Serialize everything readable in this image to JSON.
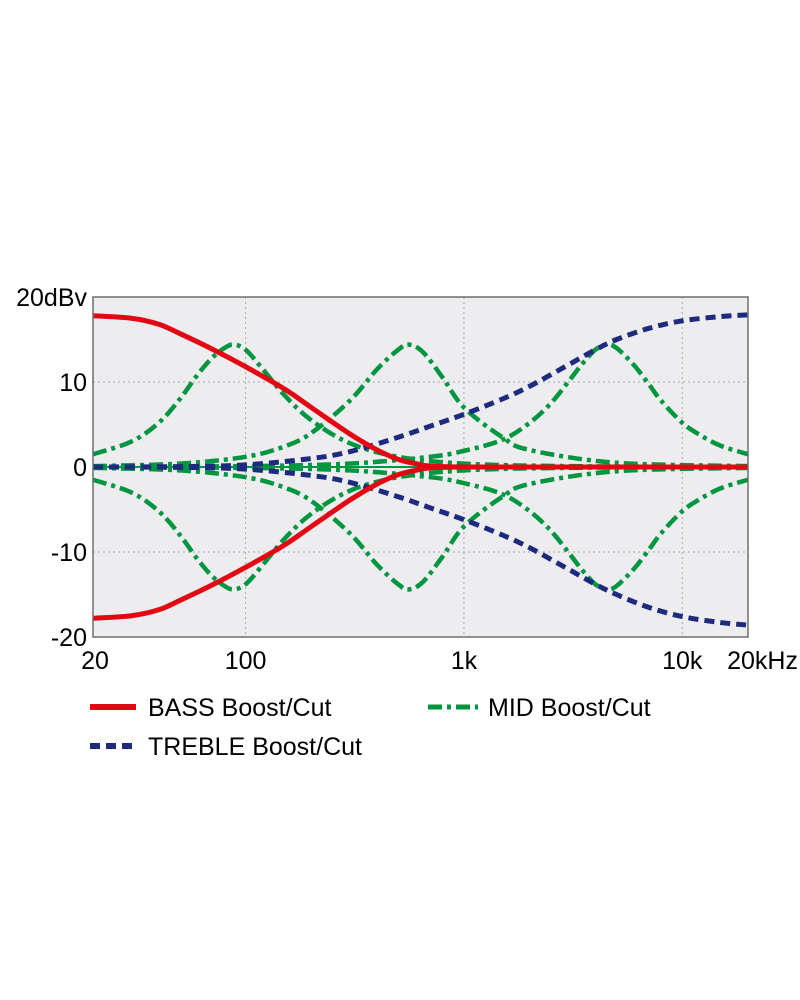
{
  "chart_data": {
    "type": "line",
    "title": "",
    "xlabel": "",
    "ylabel": "",
    "x_scale": "log",
    "xlim": [
      20,
      20000
    ],
    "ylim": [
      -20,
      20
    ],
    "y_ticks": [
      {
        "value": 20,
        "label": "20dBv"
      },
      {
        "value": 10,
        "label": "10"
      },
      {
        "value": 0,
        "label": "0"
      },
      {
        "value": -10,
        "label": "-10"
      },
      {
        "value": -20,
        "label": "-20"
      }
    ],
    "x_ticks": [
      {
        "value": 20,
        "label": "20"
      },
      {
        "value": 100,
        "label": "100"
      },
      {
        "value": 1000,
        "label": "1k"
      },
      {
        "value": 10000,
        "label": "10k"
      },
      {
        "value": 20000,
        "label": "20kHz"
      }
    ],
    "grid": true,
    "legend_position": "bottom",
    "series": [
      {
        "name": "BASS Boost/Cut",
        "color": "#e30613",
        "style": "solid",
        "curves": [
          {
            "label": "BASS Boost",
            "points": [
              [
                20,
                17.8
              ],
              [
                30,
                17.5
              ],
              [
                40,
                16.8
              ],
              [
                50,
                15.7
              ],
              [
                70,
                13.9
              ],
              [
                100,
                11.8
              ],
              [
                150,
                9.2
              ],
              [
                200,
                7.0
              ],
              [
                300,
                3.9
              ],
              [
                400,
                2.0
              ],
              [
                500,
                0.9
              ],
              [
                600,
                0.4
              ],
              [
                700,
                0.1
              ],
              [
                1000,
                0
              ],
              [
                2000,
                0
              ],
              [
                5000,
                0
              ],
              [
                20000,
                0
              ]
            ]
          },
          {
            "label": "BASS Cut",
            "points": [
              [
                20,
                -17.8
              ],
              [
                30,
                -17.5
              ],
              [
                40,
                -16.8
              ],
              [
                50,
                -15.7
              ],
              [
                70,
                -13.9
              ],
              [
                100,
                -11.8
              ],
              [
                150,
                -9.2
              ],
              [
                200,
                -7.0
              ],
              [
                300,
                -3.9
              ],
              [
                400,
                -2.0
              ],
              [
                500,
                -0.9
              ],
              [
                600,
                -0.4
              ],
              [
                700,
                -0.1
              ],
              [
                1000,
                0
              ],
              [
                2000,
                0
              ],
              [
                5000,
                0
              ],
              [
                20000,
                0
              ]
            ]
          }
        ]
      },
      {
        "name": "TREBLE Boost/Cut",
        "color": "#1d2a7e",
        "style": "dashed",
        "curves": [
          {
            "label": "TREBLE Boost",
            "points": [
              [
                20,
                0
              ],
              [
                50,
                0.05
              ],
              [
                100,
                0.25
              ],
              [
                200,
                1.0
              ],
              [
                300,
                1.8
              ],
              [
                500,
                3.5
              ],
              [
                700,
                4.8
              ],
              [
                1000,
                6.2
              ],
              [
                1500,
                8.0
              ],
              [
                2000,
                9.5
              ],
              [
                3000,
                12.0
              ],
              [
                4000,
                13.8
              ],
              [
                5000,
                15.0
              ],
              [
                7000,
                16.3
              ],
              [
                10000,
                17.2
              ],
              [
                15000,
                17.7
              ],
              [
                20000,
                17.9
              ]
            ]
          },
          {
            "label": "TREBLE Cut",
            "points": [
              [
                20,
                0
              ],
              [
                50,
                -0.05
              ],
              [
                100,
                -0.25
              ],
              [
                200,
                -1.0
              ],
              [
                300,
                -1.8
              ],
              [
                500,
                -3.5
              ],
              [
                700,
                -4.8
              ],
              [
                1000,
                -6.2
              ],
              [
                1500,
                -8.0
              ],
              [
                2000,
                -9.5
              ],
              [
                3000,
                -12.0
              ],
              [
                4000,
                -13.8
              ],
              [
                5000,
                -15.0
              ],
              [
                7000,
                -16.5
              ],
              [
                10000,
                -17.6
              ],
              [
                15000,
                -18.3
              ],
              [
                20000,
                -18.6
              ]
            ]
          }
        ]
      },
      {
        "name": "MID Boost/Cut",
        "color": "#009640",
        "style": "dashdot",
        "curves": [
          {
            "label": "MID Boost 1",
            "points": [
              [
                20,
                1.5
              ],
              [
                30,
                3.0
              ],
              [
                40,
                5.2
              ],
              [
                50,
                8.0
              ],
              [
                60,
                10.8
              ],
              [
                70,
                12.8
              ],
              [
                80,
                14.0
              ],
              [
                88,
                14.4
              ],
              [
                100,
                13.8
              ],
              [
                120,
                11.5
              ],
              [
                150,
                8.5
              ],
              [
                200,
                5.5
              ],
              [
                300,
                2.8
              ],
              [
                500,
                1.2
              ],
              [
                1000,
                0.4
              ],
              [
                3000,
                0.1
              ],
              [
                20000,
                0
              ]
            ]
          },
          {
            "label": "MID Cut 1",
            "points": [
              [
                20,
                -1.5
              ],
              [
                30,
                -3.0
              ],
              [
                40,
                -5.2
              ],
              [
                50,
                -8.0
              ],
              [
                60,
                -10.8
              ],
              [
                70,
                -12.8
              ],
              [
                80,
                -14.0
              ],
              [
                88,
                -14.4
              ],
              [
                100,
                -13.8
              ],
              [
                120,
                -11.5
              ],
              [
                150,
                -8.5
              ],
              [
                200,
                -5.5
              ],
              [
                300,
                -2.8
              ],
              [
                500,
                -1.2
              ],
              [
                1000,
                -0.4
              ],
              [
                3000,
                -0.1
              ],
              [
                20000,
                0
              ]
            ]
          },
          {
            "label": "MID Boost 2",
            "points": [
              [
                20,
                0.1
              ],
              [
                50,
                0.4
              ],
              [
                100,
                1.2
              ],
              [
                150,
                2.4
              ],
              [
                200,
                4.0
              ],
              [
                300,
                7.8
              ],
              [
                400,
                11.5
              ],
              [
                500,
                13.8
              ],
              [
                560,
                14.4
              ],
              [
                650,
                13.5
              ],
              [
                800,
                10.5
              ],
              [
                1000,
                7.0
              ],
              [
                1500,
                3.5
              ],
              [
                2000,
                2.0
              ],
              [
                5000,
                0.5
              ],
              [
                20000,
                0.1
              ]
            ]
          },
          {
            "label": "MID Cut 2",
            "points": [
              [
                20,
                -0.1
              ],
              [
                50,
                -0.4
              ],
              [
                100,
                -1.2
              ],
              [
                150,
                -2.4
              ],
              [
                200,
                -4.0
              ],
              [
                300,
                -7.8
              ],
              [
                400,
                -11.5
              ],
              [
                500,
                -13.8
              ],
              [
                560,
                -14.4
              ],
              [
                650,
                -13.5
              ],
              [
                800,
                -10.5
              ],
              [
                1000,
                -7.0
              ],
              [
                1500,
                -3.5
              ],
              [
                2000,
                -2.0
              ],
              [
                5000,
                -0.5
              ],
              [
                20000,
                -0.1
              ]
            ]
          },
          {
            "label": "MID Boost 3",
            "points": [
              [
                20,
                0
              ],
              [
                100,
                0.1
              ],
              [
                300,
                0.4
              ],
              [
                700,
                1.2
              ],
              [
                1000,
                1.9
              ],
              [
                1500,
                3.2
              ],
              [
                2000,
                5.2
              ],
              [
                2500,
                7.5
              ],
              [
                3000,
                10.0
              ],
              [
                3500,
                12.2
              ],
              [
                4000,
                13.8
              ],
              [
                4500,
                14.4
              ],
              [
                5000,
                14.0
              ],
              [
                6000,
                12.0
              ],
              [
                7000,
                9.8
              ],
              [
                8000,
                7.8
              ],
              [
                10000,
                5.2
              ],
              [
                12000,
                3.8
              ],
              [
                15000,
                2.5
              ],
              [
                20000,
                1.5
              ]
            ]
          },
          {
            "label": "MID Cut 3",
            "points": [
              [
                20,
                0
              ],
              [
                100,
                -0.1
              ],
              [
                300,
                -0.4
              ],
              [
                700,
                -1.2
              ],
              [
                1000,
                -1.9
              ],
              [
                1500,
                -3.2
              ],
              [
                2000,
                -5.2
              ],
              [
                2500,
                -7.5
              ],
              [
                3000,
                -10.0
              ],
              [
                3500,
                -12.2
              ],
              [
                4000,
                -13.8
              ],
              [
                4500,
                -14.4
              ],
              [
                5000,
                -14.0
              ],
              [
                6000,
                -12.0
              ],
              [
                7000,
                -9.8
              ],
              [
                8000,
                -7.8
              ],
              [
                10000,
                -5.2
              ],
              [
                12000,
                -3.8
              ],
              [
                15000,
                -2.5
              ],
              [
                20000,
                -1.5
              ]
            ]
          }
        ]
      }
    ],
    "legend": [
      {
        "name": "BASS Boost/Cut",
        "label": "BASS Boost/Cut"
      },
      {
        "name": "MID Boost/Cut",
        "label": "MID Boost/Cut"
      },
      {
        "name": "TREBLE Boost/Cut",
        "label": "TREBLE Boost/Cut"
      }
    ],
    "colors": {
      "plot_background": "#ededef",
      "grid": "#a8a8a8",
      "frame": "#6e6e6e",
      "bass": "#e30613",
      "treble": "#1d2a7e",
      "mid": "#009640"
    }
  }
}
